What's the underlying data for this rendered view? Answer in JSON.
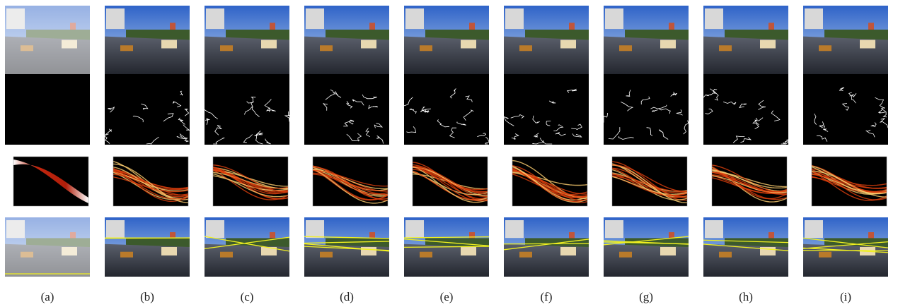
{
  "figure": {
    "columns": [
      {
        "label": "(a)"
      },
      {
        "label": "(b)"
      },
      {
        "label": "(c)"
      },
      {
        "label": "(d)"
      },
      {
        "label": "(e)"
      },
      {
        "label": "(f)"
      },
      {
        "label": "(g)"
      },
      {
        "label": "(h)"
      },
      {
        "label": "(i)"
      }
    ]
  }
}
